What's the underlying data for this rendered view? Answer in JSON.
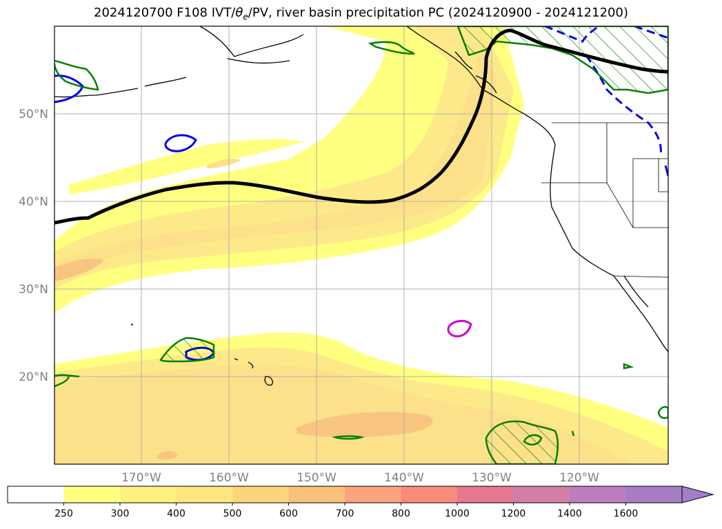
{
  "title": {
    "prefix": "2024120700 F108 IVT/",
    "theta": "θ",
    "theta_sub": "e",
    "suffix": "/PV, river basin precipitation PC (2024120900 - 2024121200)"
  },
  "lat_labels": [
    "50°N",
    "40°N",
    "30°N",
    "20°N"
  ],
  "lon_labels": [
    "170°W",
    "160°W",
    "150°W",
    "140°W",
    "130°W",
    "120°W"
  ],
  "colorbar": {
    "labels": [
      "250",
      "300",
      "400",
      "500",
      "600",
      "700",
      "800",
      "1000",
      "1200",
      "1400",
      "1600"
    ],
    "colors": [
      "#ffffff",
      "#ffff80",
      "#fff080",
      "#fee57d",
      "#fed47b",
      "#fdc07a",
      "#fca57c",
      "#f98a7d",
      "#e67990",
      "#d07fa8",
      "#bd7ec0",
      "#a67ec8"
    ],
    "extend": "max"
  },
  "colors": {
    "ivt_250": "#ffff80",
    "ivt_300": "#fee98a",
    "ivt_400": "#fde08a",
    "ivt_500": "#fdd384",
    "pv_contour": "#000000",
    "pc_green": "#008000",
    "blue_contour": "#0000ee",
    "magenta_contour": "#cc00cc",
    "grid": "#b0b0b0"
  }
}
